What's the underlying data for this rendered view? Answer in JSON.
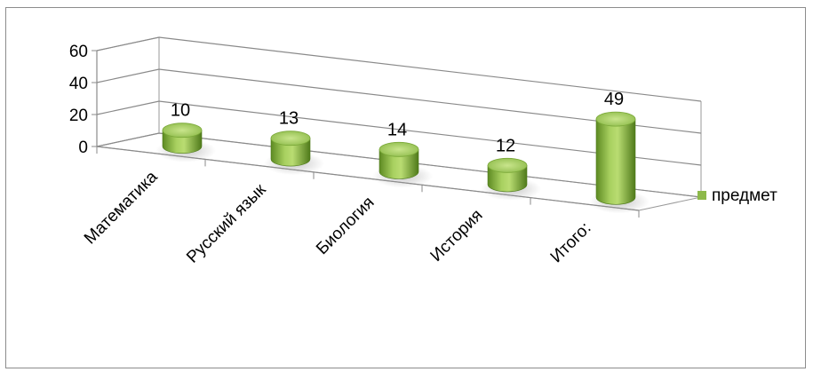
{
  "chart_data": {
    "type": "bar",
    "style": "3d-cylinder",
    "categories": [
      "Математика",
      "Русский язык",
      "Биология",
      "История",
      "Итого:"
    ],
    "series": [
      {
        "name": "предмет",
        "values": [
          10,
          13,
          14,
          12,
          49
        ],
        "color": "#8db94a"
      }
    ],
    "ylim": [
      0,
      60
    ],
    "yticks": [
      "0",
      "20",
      "40",
      "60"
    ],
    "grid": true,
    "legend": "right",
    "data_labels": [
      "10",
      "13",
      "14",
      "12",
      "49"
    ]
  }
}
